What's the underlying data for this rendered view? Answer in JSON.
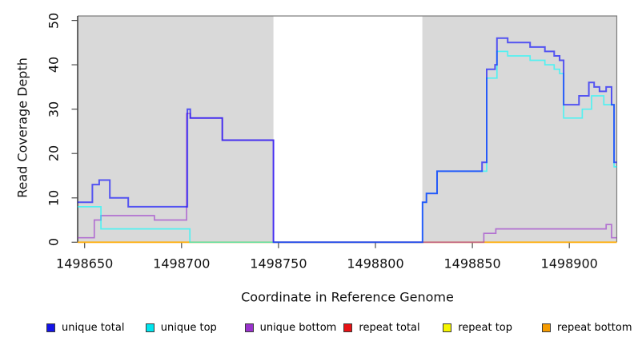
{
  "figure": {
    "y_axis": {
      "title": "Read Coverage Depth",
      "tick_labels": [
        "0",
        "10",
        "20",
        "30",
        "40",
        "50"
      ],
      "tick_values": [
        0,
        10,
        20,
        30,
        40,
        50
      ]
    },
    "x_axis": {
      "title": "Coordinate in Reference Genome",
      "tick_labels": [
        "1498650",
        "1498700",
        "1498750",
        "1498800",
        "1498850",
        "1498900"
      ],
      "tick_values": [
        1498650,
        1498700,
        1498750,
        1498800,
        1498850,
        1498900
      ]
    },
    "legend": {
      "items": [
        {
          "label": "unique total",
          "color": "#1414e8"
        },
        {
          "label": "unique top",
          "color": "#00e5ee"
        },
        {
          "label": "unique bottom",
          "color": "#9932cc"
        },
        {
          "label": "repeat total",
          "color": "#e81215"
        },
        {
          "label": "repeat top",
          "color": "#f5f500"
        },
        {
          "label": "repeat bottom",
          "color": "#f59b00"
        }
      ]
    },
    "colors": {
      "band_fill": "#d9d9d9",
      "box_border": "#7f7f7f",
      "axis_line": "#1a1a1a",
      "tick_mark": "#4d4d4d"
    }
  },
  "chart_data": {
    "type": "line",
    "subtype": "step",
    "title": "",
    "xlabel": "Coordinate in Reference Genome",
    "ylabel": "Read Coverage Depth",
    "xlim": [
      1498646.4,
      1498924.5
    ],
    "ylim": [
      0,
      51
    ],
    "grid": false,
    "legend_position": "bottom",
    "background_bands": [
      {
        "x_start": 1498646.4,
        "x_end": 1498747.4
      },
      {
        "x_start": 1498824.2,
        "x_end": 1498924.5
      }
    ],
    "x_end": 1498924.5,
    "series": [
      {
        "name": "repeat total",
        "color": "#ff0000",
        "opacity": 0.62,
        "width": 1.7,
        "steps": [
          [
            1498646.4,
            0
          ]
        ]
      },
      {
        "name": "repeat top",
        "color": "#ffff00",
        "opacity": 0.62,
        "width": 1.7,
        "steps": [
          [
            1498646.4,
            0
          ]
        ]
      },
      {
        "name": "repeat bottom",
        "color": "#ffa500",
        "opacity": 0.62,
        "width": 1.8,
        "steps": [
          [
            1498646.4,
            0
          ]
        ]
      },
      {
        "name": "unique bottom",
        "color": "#9932cc",
        "opacity": 0.62,
        "width": 1.7,
        "steps": [
          [
            1498646.4,
            1
          ],
          [
            1498655,
            5
          ],
          [
            1498658.4,
            6
          ],
          [
            1498686,
            5
          ],
          [
            1498702.6,
            29
          ],
          [
            1498704.5,
            28
          ],
          [
            1498721,
            23
          ],
          [
            1498747.4,
            0
          ],
          [
            1498855.9,
            2
          ],
          [
            1498862.1,
            3
          ],
          [
            1498919,
            4
          ],
          [
            1498921.8,
            1
          ]
        ]
      },
      {
        "name": "unique top",
        "color": "#00ffff",
        "opacity": 0.62,
        "width": 1.7,
        "steps": [
          [
            1498646.4,
            8
          ],
          [
            1498658.4,
            3
          ],
          [
            1498704.3,
            0
          ],
          [
            1498824.3,
            9
          ],
          [
            1498826.3,
            11
          ],
          [
            1498831.8,
            16
          ],
          [
            1498857.4,
            37
          ],
          [
            1498862.7,
            43
          ],
          [
            1498868.2,
            42
          ],
          [
            1498879.8,
            41
          ],
          [
            1498887.4,
            40
          ],
          [
            1498892.2,
            39
          ],
          [
            1498895,
            38
          ],
          [
            1498897.1,
            28
          ],
          [
            1498906.7,
            30
          ],
          [
            1498911.5,
            33
          ],
          [
            1498917.8,
            31
          ],
          [
            1498923.1,
            17
          ]
        ]
      },
      {
        "name": "unique total",
        "color": "#0000ff",
        "opacity": 0.62,
        "width": 2.0,
        "steps": [
          [
            1498646.4,
            9
          ],
          [
            1498654,
            13
          ],
          [
            1498657.5,
            14
          ],
          [
            1498663,
            10
          ],
          [
            1498672.5,
            8
          ],
          [
            1498703,
            30
          ],
          [
            1498704.5,
            28
          ],
          [
            1498721,
            23
          ],
          [
            1498747.4,
            0
          ],
          [
            1498824.3,
            9
          ],
          [
            1498826.3,
            11
          ],
          [
            1498831.8,
            16
          ],
          [
            1498855,
            18
          ],
          [
            1498857.4,
            39
          ],
          [
            1498861.7,
            40
          ],
          [
            1498862.7,
            46
          ],
          [
            1498868.2,
            45
          ],
          [
            1498879.8,
            44
          ],
          [
            1498887.4,
            43
          ],
          [
            1498892.2,
            42
          ],
          [
            1498895,
            41
          ],
          [
            1498897.1,
            31
          ],
          [
            1498905,
            33
          ],
          [
            1498910.1,
            36
          ],
          [
            1498912.8,
            35
          ],
          [
            1498915.6,
            34
          ],
          [
            1498919,
            35
          ],
          [
            1498921.8,
            31
          ],
          [
            1498923.1,
            18
          ]
        ]
      }
    ]
  }
}
